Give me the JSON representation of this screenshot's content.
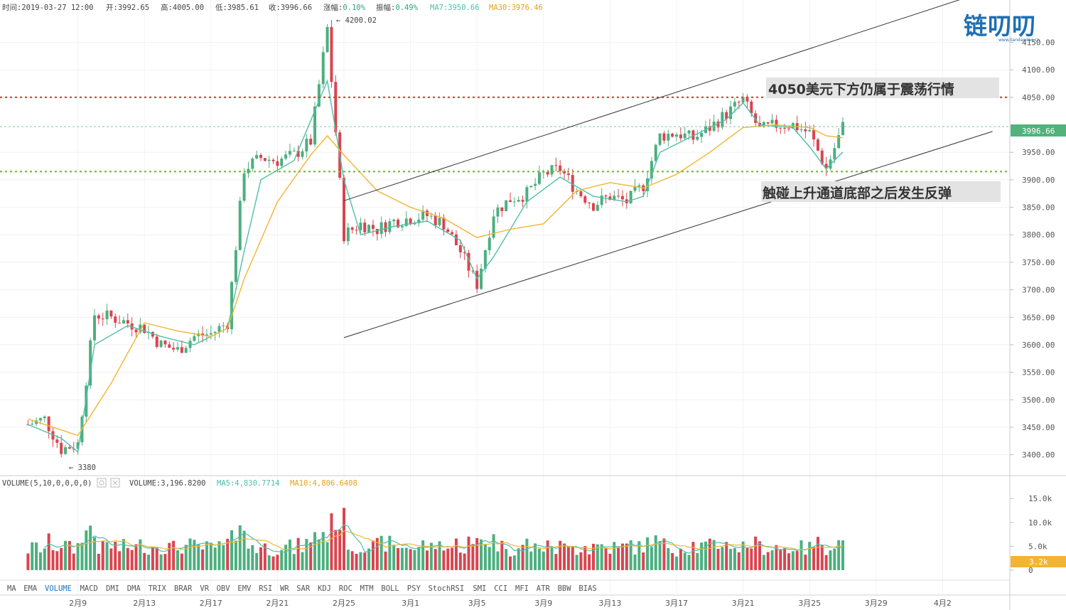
{
  "header": {
    "time": "时间:2019-03-27 12:00",
    "open": "开:3992.65",
    "high": "高:4005.00",
    "low": "低:3985.61",
    "close": "收:3996.66",
    "change": "涨幅:",
    "change_val": "0.10%",
    "amplitude": "振幅:",
    "amplitude_val": "0.49%",
    "ma7": "MA7:3950.66",
    "ma30": "MA30:3976.46"
  },
  "logo": {
    "text": "链叨叨",
    "sub": "www.liandaodao.cn"
  },
  "annotations": {
    "top": "4050美元下方仍属于震荡行情",
    "bottom": "触碰上升通道底部之后发生反弹"
  },
  "markers": {
    "high": "← 4200.02",
    "low": "← 3380"
  },
  "price_label": "3996.66",
  "volume_header": {
    "label": "VOLUME(5,10,0,0,0,0)",
    "value": "VOLUME:3,196.8200",
    "ma5": "MA5:4,830.7714",
    "ma10": "MA10:4,806.6408"
  },
  "volume_label": "3.2k",
  "indicators": [
    "MA",
    "EMA",
    "VOLUME",
    "MACD",
    "DMI",
    "DMA",
    "TRIX",
    "BRAR",
    "VR",
    "OBV",
    "EMV",
    "RSI",
    "WR",
    "SAR",
    "KDJ",
    "ROC",
    "MTM",
    "BOLL",
    "PSY",
    "StochRSI",
    "SMI",
    "CCI",
    "MFI",
    "ATR",
    "BBW",
    "BIAS"
  ],
  "selected_indicator": "VOLUME",
  "colors": {
    "up": "#4caf7f",
    "down": "#d9454f",
    "ma7": "#4dbfaa",
    "ma30": "#f2b531",
    "resistance": "#e24545",
    "support": "#6dbb3a",
    "price_tag": "#53b27c",
    "volume_tag": "#f2b531"
  },
  "chart_data": {
    "type": "candlestick",
    "x_ticks": [
      "2月9",
      "2月13",
      "2月17",
      "2月21",
      "2月25",
      "3月1",
      "3月5",
      "3月9",
      "3月13",
      "3月17",
      "3月21",
      "3月25",
      "3月29",
      "4月2"
    ],
    "y_ticks": [
      "4150.00",
      "4100.00",
      "4050.00",
      "3950.00",
      "3900.00",
      "3850.00",
      "3800.00",
      "3750.00",
      "3700.00",
      "3650.00",
      "3600.00",
      "3550.00",
      "3500.00",
      "3450.00",
      "3400.00"
    ],
    "ylim": [
      3362,
      4227
    ],
    "vol_ticks": [
      "15.0k",
      "10.0k",
      "5.0k",
      "0"
    ],
    "vol_ylim": [
      -2100,
      19800
    ],
    "resistance": 4050,
    "support": 3915,
    "last_price": 3996.66,
    "last_volume": 3196.82,
    "high_marker": 4200.02,
    "low_marker": 3380,
    "price_path": [
      [
        "2019-02-06",
        3455
      ],
      [
        "2019-02-07",
        3465
      ],
      [
        "2019-02-08",
        3410
      ],
      [
        "2019-02-09",
        3420
      ],
      [
        "2019-02-10",
        3655
      ],
      [
        "2019-02-11",
        3650
      ],
      [
        "2019-02-12",
        3640
      ],
      [
        "2019-02-13",
        3630
      ],
      [
        "2019-02-14",
        3600
      ],
      [
        "2019-02-15",
        3590
      ],
      [
        "2019-02-16",
        3615
      ],
      [
        "2019-02-17",
        3620
      ],
      [
        "2019-02-18",
        3640
      ],
      [
        "2019-02-19",
        3920
      ],
      [
        "2019-02-20",
        3940
      ],
      [
        "2019-02-21",
        3935
      ],
      [
        "2019-02-22",
        3945
      ],
      [
        "2019-02-23",
        3970
      ],
      [
        "2019-02-24",
        4175
      ],
      [
        "2019-02-25",
        3800
      ],
      [
        "2019-02-26",
        3820
      ],
      [
        "2019-02-27",
        3810
      ],
      [
        "2019-02-28",
        3825
      ],
      [
        "2019-03-01",
        3830
      ],
      [
        "2019-03-02",
        3835
      ],
      [
        "2019-03-03",
        3820
      ],
      [
        "2019-03-04",
        3770
      ],
      [
        "2019-03-05",
        3710
      ],
      [
        "2019-03-06",
        3840
      ],
      [
        "2019-03-07",
        3865
      ],
      [
        "2019-03-08",
        3875
      ],
      [
        "2019-03-09",
        3910
      ],
      [
        "2019-03-10",
        3920
      ],
      [
        "2019-03-11",
        3880
      ],
      [
        "2019-03-12",
        3855
      ],
      [
        "2019-03-13",
        3870
      ],
      [
        "2019-03-14",
        3860
      ],
      [
        "2019-03-15",
        3890
      ],
      [
        "2019-03-16",
        3980
      ],
      [
        "2019-03-17",
        3985
      ],
      [
        "2019-03-18",
        3975
      ],
      [
        "2019-03-19",
        3995
      ],
      [
        "2019-03-20",
        4020
      ],
      [
        "2019-03-21",
        4045
      ],
      [
        "2019-03-22",
        3990
      ],
      [
        "2019-03-23",
        4000
      ],
      [
        "2019-03-24",
        4000
      ],
      [
        "2019-03-25",
        3985
      ],
      [
        "2019-03-26",
        3920
      ],
      [
        "2019-03-27",
        3996.66
      ]
    ],
    "series": [
      {
        "name": "MA7",
        "values": [
          [
            "2019-02-06",
            3455
          ],
          [
            "2019-02-08",
            3430
          ],
          [
            "2019-02-09",
            3405
          ],
          [
            "2019-02-10",
            3600
          ],
          [
            "2019-02-12",
            3635
          ],
          [
            "2019-02-14",
            3615
          ],
          [
            "2019-02-16",
            3600
          ],
          [
            "2019-02-18",
            3630
          ],
          [
            "2019-02-19",
            3770
          ],
          [
            "2019-02-20",
            3900
          ],
          [
            "2019-02-22",
            3935
          ],
          [
            "2019-02-24",
            4080
          ],
          [
            "2019-02-25",
            3900
          ],
          [
            "2019-02-26",
            3800
          ],
          [
            "2019-02-28",
            3815
          ],
          [
            "2019-03-02",
            3825
          ],
          [
            "2019-03-04",
            3790
          ],
          [
            "2019-03-05",
            3720
          ],
          [
            "2019-03-06",
            3760
          ],
          [
            "2019-03-08",
            3860
          ],
          [
            "2019-03-10",
            3905
          ],
          [
            "2019-03-12",
            3870
          ],
          [
            "2019-03-14",
            3860
          ],
          [
            "2019-03-15",
            3870
          ],
          [
            "2019-03-16",
            3950
          ],
          [
            "2019-03-18",
            3980
          ],
          [
            "2019-03-20",
            4010
          ],
          [
            "2019-03-21",
            4040
          ],
          [
            "2019-03-22",
            4000
          ],
          [
            "2019-03-24",
            3995
          ],
          [
            "2019-03-25",
            3960
          ],
          [
            "2019-03-26",
            3920
          ],
          [
            "2019-03-27",
            3950.66
          ]
        ]
      },
      {
        "name": "MA30",
        "values": [
          [
            "2019-02-06",
            3465
          ],
          [
            "2019-02-09",
            3435
          ],
          [
            "2019-02-11",
            3530
          ],
          [
            "2019-02-13",
            3640
          ],
          [
            "2019-02-15",
            3625
          ],
          [
            "2019-02-17",
            3615
          ],
          [
            "2019-02-18",
            3630
          ],
          [
            "2019-02-19",
            3720
          ],
          [
            "2019-02-21",
            3860
          ],
          [
            "2019-02-23",
            3945
          ],
          [
            "2019-02-24",
            3980
          ],
          [
            "2019-02-25",
            3945
          ],
          [
            "2019-02-27",
            3880
          ],
          [
            "2019-03-01",
            3850
          ],
          [
            "2019-03-03",
            3830
          ],
          [
            "2019-03-05",
            3795
          ],
          [
            "2019-03-07",
            3810
          ],
          [
            "2019-03-09",
            3820
          ],
          [
            "2019-03-11",
            3880
          ],
          [
            "2019-03-13",
            3895
          ],
          [
            "2019-03-15",
            3885
          ],
          [
            "2019-03-17",
            3910
          ],
          [
            "2019-03-19",
            3950
          ],
          [
            "2019-03-21",
            3995
          ],
          [
            "2019-03-23",
            4000
          ],
          [
            "2019-03-25",
            3995
          ],
          [
            "2019-03-26",
            3980
          ],
          [
            "2019-03-27",
            3976.46
          ]
        ]
      }
    ],
    "channel": {
      "upper": [
        [
          "2019-02-25",
          3862
        ],
        [
          "2019-04-05",
          4247
        ]
      ],
      "lower": [
        [
          "2019-02-25",
          3613
        ],
        [
          "2019-04-05",
          3988
        ]
      ]
    }
  }
}
